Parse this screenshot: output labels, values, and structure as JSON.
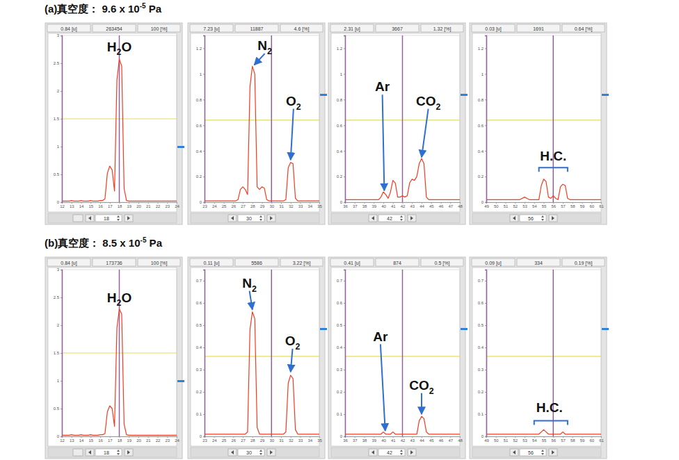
{
  "row_titles": [
    [
      "(a)真空度： 9.6 x 10",
      "-5",
      " Pa"
    ],
    [
      "(b)真空度： 8.5 x 10",
      "-5",
      " Pa"
    ]
  ],
  "chart_data": [
    {
      "type": "line",
      "color": "#f03c20",
      "grid": false,
      "header": [
        "0.84 [u]",
        "263454",
        "100 [%]"
      ],
      "cursor": 18,
      "threshold": 1.5,
      "xlim": [
        12,
        24
      ],
      "xticks": [
        12,
        13,
        14,
        15,
        16,
        17,
        18,
        19,
        20,
        21,
        22,
        23,
        24
      ],
      "ylim": [
        0,
        3
      ],
      "yticks": [
        0,
        0.5,
        1,
        1.5,
        2,
        2.5,
        3
      ],
      "x": [
        12,
        12.25,
        12.5,
        12.75,
        13,
        13.25,
        13.5,
        13.75,
        14,
        14.25,
        14.5,
        14.75,
        15,
        15.25,
        15.5,
        15.75,
        16,
        16.25,
        16.5,
        16.75,
        17,
        17.25,
        17.5,
        17.75,
        18,
        18.25,
        18.5,
        18.75,
        19,
        19.25,
        19.5,
        19.75,
        20,
        20.25,
        20.5,
        20.75,
        21,
        21.25,
        21.5,
        21.75,
        22,
        22.25,
        22.5,
        22.75,
        23,
        23.25,
        23.5,
        23.75,
        24
      ],
      "values": [
        0.02,
        0.02,
        0.02,
        0.02,
        0.03,
        0.02,
        0.02,
        0.02,
        0.03,
        0.02,
        0.02,
        0.02,
        0.03,
        0.02,
        0.02,
        0.02,
        0.03,
        0.03,
        0.06,
        0.52,
        0.65,
        0.58,
        0.2,
        2.2,
        2.57,
        2.45,
        0.25,
        0.03,
        0.02,
        0.02,
        0.02,
        0.02,
        0.02,
        0.02,
        0.02,
        0.02,
        0.02,
        0.02,
        0.02,
        0.02,
        0.02,
        0.02,
        0.02,
        0.02,
        0.02,
        0.02,
        0.02,
        0.02,
        0.02
      ],
      "annotations": [
        {
          "text": "H2O",
          "text_x": 18,
          "text_y": 2.8
        }
      ]
    },
    {
      "type": "line",
      "color": "#f03c20",
      "grid": false,
      "header": [
        "7.23 [u]",
        "11887",
        "4.6 [%]"
      ],
      "cursor": 30,
      "threshold": 0.64,
      "xlim": [
        23,
        35
      ],
      "xticks": [
        23,
        24,
        25,
        26,
        27,
        28,
        29,
        30,
        31,
        32,
        33,
        34,
        35
      ],
      "ylim": [
        0,
        1.3
      ],
      "yticks": [
        0,
        0.2,
        0.4,
        0.6,
        0.8,
        1,
        1.2
      ],
      "x": [
        23,
        23.25,
        23.5,
        23.75,
        24,
        24.25,
        24.5,
        24.75,
        25,
        25.25,
        25.5,
        25.75,
        26,
        26.25,
        26.5,
        26.75,
        27,
        27.25,
        27.5,
        27.75,
        28,
        28.25,
        28.5,
        28.75,
        29,
        29.25,
        29.5,
        29.75,
        30,
        30.25,
        30.5,
        30.75,
        31,
        31.25,
        31.5,
        31.75,
        32,
        32.25,
        32.5,
        32.75,
        33,
        33.25,
        33.5,
        33.75,
        34,
        34.25,
        34.5,
        34.75,
        35
      ],
      "values": [
        0.01,
        0.01,
        0.01,
        0.01,
        0.01,
        0.01,
        0.01,
        0.01,
        0.01,
        0.01,
        0.01,
        0.01,
        0.01,
        0.01,
        0.02,
        0.1,
        0.12,
        0.1,
        0.06,
        0.9,
        1.06,
        1.0,
        0.12,
        0.1,
        0.12,
        0.11,
        0.02,
        0.01,
        0.01,
        0.01,
        0.01,
        0.01,
        0.01,
        0.01,
        0.02,
        0.27,
        0.31,
        0.3,
        0.03,
        0.01,
        0.01,
        0.01,
        0.01,
        0.01,
        0.01,
        0.01,
        0.01,
        0.01,
        0.01
      ],
      "annotations": [
        {
          "text": "N2",
          "text_x": 29.3,
          "text_y": 1.22,
          "x": 28.2,
          "y": 1.07
        },
        {
          "text": "O2",
          "text_x": 32.3,
          "text_y": 0.79,
          "x": 32,
          "y": 0.33
        }
      ]
    },
    {
      "type": "line",
      "color": "#f03c20",
      "grid": false,
      "header": [
        "2.31 [u]",
        "3667",
        "1.32 [%]"
      ],
      "cursor": 42,
      "threshold": 0.64,
      "xlim": [
        36,
        48
      ],
      "xticks": [
        36,
        37,
        38,
        39,
        40,
        41,
        42,
        43,
        44,
        45,
        46,
        47,
        48
      ],
      "ylim": [
        0,
        1.3
      ],
      "yticks": [
        0,
        0.2,
        0.4,
        0.6,
        0.8,
        1,
        1.2
      ],
      "x": [
        36,
        36.25,
        36.5,
        36.75,
        37,
        37.25,
        37.5,
        37.75,
        38,
        38.25,
        38.5,
        38.75,
        39,
        39.25,
        39.5,
        39.75,
        40,
        40.25,
        40.5,
        40.75,
        41,
        41.25,
        41.5,
        41.75,
        42,
        42.25,
        42.5,
        42.75,
        43,
        43.25,
        43.5,
        43.75,
        44,
        44.25,
        44.5,
        44.75,
        45,
        45.25,
        45.5,
        45.75,
        46,
        46.25,
        46.5,
        46.75,
        47,
        47.25,
        47.5,
        47.75,
        48
      ],
      "values": [
        0.02,
        0.02,
        0.02,
        0.02,
        0.02,
        0.02,
        0.02,
        0.02,
        0.02,
        0.02,
        0.02,
        0.02,
        0.02,
        0.02,
        0.02,
        0.04,
        0.08,
        0.06,
        0.03,
        0.08,
        0.17,
        0.15,
        0.04,
        0.04,
        0.05,
        0.04,
        0.05,
        0.15,
        0.18,
        0.17,
        0.2,
        0.3,
        0.34,
        0.3,
        0.04,
        0.02,
        0.02,
        0.02,
        0.02,
        0.02,
        0.02,
        0.02,
        0.02,
        0.02,
        0.02,
        0.02,
        0.02,
        0.02,
        0.02
      ],
      "annotations": [
        {
          "text": "Ar",
          "text_x": 39.9,
          "text_y": 0.9,
          "x": 40.1,
          "y": 0.09
        },
        {
          "text": "CO2",
          "text_x": 44.7,
          "text_y": 0.79,
          "x": 44,
          "y": 0.35
        }
      ]
    },
    {
      "type": "line",
      "color": "#f03c20",
      "grid": false,
      "header": [
        "0.03 [u]",
        "1691",
        "0.64 [%]"
      ],
      "cursor": 56,
      "threshold": 0.64,
      "xlim": [
        49,
        61
      ],
      "xticks": [
        49,
        50,
        51,
        52,
        53,
        54,
        55,
        56,
        57,
        58,
        59,
        60,
        61
      ],
      "ylim": [
        0,
        1.3
      ],
      "yticks": [
        0,
        0.2,
        0.4,
        0.6,
        0.8,
        1,
        1.2
      ],
      "x": [
        49,
        49.25,
        49.5,
        49.75,
        50,
        50.25,
        50.5,
        50.75,
        51,
        51.25,
        51.5,
        51.75,
        52,
        52.25,
        52.5,
        52.75,
        53,
        53.25,
        53.5,
        53.75,
        54,
        54.25,
        54.5,
        54.75,
        55,
        55.25,
        55.5,
        55.75,
        56,
        56.25,
        56.5,
        56.75,
        57,
        57.25,
        57.5,
        57.75,
        58,
        58.25,
        58.5,
        58.75,
        59,
        59.25,
        59.5,
        59.75,
        60,
        60.25,
        60.5,
        60.75,
        61
      ],
      "values": [
        0.02,
        0.02,
        0.02,
        0.02,
        0.02,
        0.02,
        0.02,
        0.02,
        0.02,
        0.02,
        0.02,
        0.02,
        0.02,
        0.02,
        0.02,
        0.03,
        0.04,
        0.03,
        0.02,
        0.02,
        0.02,
        0.02,
        0.02,
        0.13,
        0.18,
        0.16,
        0.04,
        0.03,
        0.05,
        0.03,
        0.02,
        0.12,
        0.14,
        0.13,
        0.03,
        0.02,
        0.02,
        0.02,
        0.02,
        0.02,
        0.02,
        0.02,
        0.02,
        0.02,
        0.02,
        0.02,
        0.02,
        0.02,
        0.02
      ],
      "annotations": [
        {
          "text": "H.C.",
          "text_x": 56,
          "text_y": 0.36,
          "x": [
            54.5,
            57.5
          ],
          "y": 0.27
        }
      ]
    },
    {
      "type": "line",
      "color": "#f03c20",
      "grid": false,
      "header": [
        "0.84 [u]",
        "173736",
        "100 [%]"
      ],
      "cursor": 18,
      "threshold": 1.5,
      "xlim": [
        12,
        24
      ],
      "xticks": [
        12,
        13,
        14,
        15,
        16,
        17,
        18,
        19,
        20,
        21,
        22,
        23,
        24
      ],
      "ylim": [
        0,
        3
      ],
      "yticks": [
        0,
        0.5,
        1,
        1.5,
        2,
        2.5,
        3
      ],
      "x": [
        12,
        12.25,
        12.5,
        12.75,
        13,
        13.25,
        13.5,
        13.75,
        14,
        14.25,
        14.5,
        14.75,
        15,
        15.25,
        15.5,
        15.75,
        16,
        16.25,
        16.5,
        16.75,
        17,
        17.25,
        17.5,
        17.75,
        18,
        18.25,
        18.5,
        18.75,
        19,
        19.25,
        19.5,
        19.75,
        20,
        20.25,
        20.5,
        20.75,
        21,
        21.25,
        21.5,
        21.75,
        22,
        22.25,
        22.5,
        22.75,
        23,
        23.25,
        23.5,
        23.75,
        24
      ],
      "values": [
        0.02,
        0.02,
        0.02,
        0.02,
        0.03,
        0.02,
        0.02,
        0.02,
        0.03,
        0.02,
        0.02,
        0.02,
        0.03,
        0.02,
        0.02,
        0.02,
        0.03,
        0.03,
        0.05,
        0.44,
        0.55,
        0.5,
        0.18,
        1.95,
        2.29,
        2.2,
        0.22,
        0.03,
        0.02,
        0.02,
        0.02,
        0.02,
        0.02,
        0.02,
        0.02,
        0.02,
        0.02,
        0.02,
        0.02,
        0.02,
        0.02,
        0.02,
        0.02,
        0.02,
        0.02,
        0.02,
        0.02,
        0.02,
        0.02
      ],
      "annotations": [
        {
          "text": "H2O",
          "text_x": 18,
          "text_y": 2.5
        }
      ]
    },
    {
      "type": "line",
      "color": "#f03c20",
      "grid": false,
      "header": [
        "0.11 [u]",
        "5586",
        "3.22 [%]"
      ],
      "cursor": 30,
      "threshold": 0.36,
      "xlim": [
        23,
        35
      ],
      "xticks": [
        23,
        24,
        25,
        26,
        27,
        28,
        29,
        30,
        31,
        32,
        33,
        34,
        35
      ],
      "ylim": [
        0,
        0.75
      ],
      "yticks": [
        0,
        0.1,
        0.2,
        0.3,
        0.4,
        0.5,
        0.6,
        0.7
      ],
      "x": [
        23,
        23.25,
        23.5,
        23.75,
        24,
        24.25,
        24.5,
        24.75,
        25,
        25.25,
        25.5,
        25.75,
        26,
        26.25,
        26.5,
        26.75,
        27,
        27.25,
        27.5,
        27.75,
        28,
        28.25,
        28.5,
        28.75,
        29,
        29.25,
        29.5,
        29.75,
        30,
        30.25,
        30.5,
        30.75,
        31,
        31.25,
        31.5,
        31.75,
        32,
        32.25,
        32.5,
        32.75,
        33,
        33.25,
        33.5,
        33.75,
        34,
        34.25,
        34.5,
        34.75,
        35
      ],
      "values": [
        0.01,
        0.01,
        0.01,
        0.01,
        0.01,
        0.01,
        0.01,
        0.01,
        0.01,
        0.01,
        0.01,
        0.01,
        0.01,
        0.01,
        0.01,
        0.01,
        0.01,
        0.01,
        0.02,
        0.48,
        0.56,
        0.53,
        0.04,
        0.01,
        0.01,
        0.01,
        0.01,
        0.01,
        0.01,
        0.01,
        0.01,
        0.01,
        0.01,
        0.01,
        0.02,
        0.24,
        0.275,
        0.26,
        0.03,
        0.01,
        0.01,
        0.01,
        0.01,
        0.01,
        0.01,
        0.01,
        0.01,
        0.01,
        0.01
      ],
      "annotations": [
        {
          "text": "N2",
          "text_x": 27.7,
          "text_y": 0.69,
          "x": 28,
          "y": 0.57
        },
        {
          "text": "O2",
          "text_x": 32.2,
          "text_y": 0.43,
          "x": 32,
          "y": 0.29
        }
      ]
    },
    {
      "type": "line",
      "color": "#f03c20",
      "grid": false,
      "header": [
        "0.41 [u]",
        "874",
        "0.5 [%]"
      ],
      "cursor": 42,
      "threshold": 0.36,
      "xlim": [
        36,
        48
      ],
      "xticks": [
        36,
        37,
        38,
        39,
        40,
        41,
        42,
        43,
        44,
        45,
        46,
        47,
        48
      ],
      "ylim": [
        0,
        0.75
      ],
      "yticks": [
        0,
        0.1,
        0.2,
        0.3,
        0.4,
        0.5,
        0.6,
        0.7
      ],
      "x": [
        36,
        36.25,
        36.5,
        36.75,
        37,
        37.25,
        37.5,
        37.75,
        38,
        38.25,
        38.5,
        38.75,
        39,
        39.25,
        39.5,
        39.75,
        40,
        40.25,
        40.5,
        40.75,
        41,
        41.25,
        41.5,
        41.75,
        42,
        42.25,
        42.5,
        42.75,
        43,
        43.25,
        43.5,
        43.75,
        44,
        44.25,
        44.5,
        44.75,
        45,
        45.25,
        45.5,
        45.75,
        46,
        46.25,
        46.5,
        46.75,
        47,
        47.25,
        47.5,
        47.75,
        48
      ],
      "values": [
        0.01,
        0.01,
        0.01,
        0.01,
        0.01,
        0.01,
        0.01,
        0.01,
        0.01,
        0.01,
        0.01,
        0.01,
        0.01,
        0.01,
        0.01,
        0.01,
        0.02,
        0.01,
        0.01,
        0.01,
        0.02,
        0.01,
        0.01,
        0.01,
        0.01,
        0.01,
        0.01,
        0.01,
        0.01,
        0.01,
        0.01,
        0.07,
        0.09,
        0.08,
        0.02,
        0.01,
        0.01,
        0.01,
        0.01,
        0.01,
        0.01,
        0.01,
        0.01,
        0.01,
        0.01,
        0.01,
        0.01,
        0.01,
        0.01
      ],
      "annotations": [
        {
          "text": "Ar",
          "text_x": 39.7,
          "text_y": 0.45,
          "x": 40.2,
          "y": 0.025
        },
        {
          "text": "CO2",
          "text_x": 44,
          "text_y": 0.23,
          "x": 44,
          "y": 0.1
        }
      ]
    },
    {
      "type": "line",
      "color": "#f03c20",
      "grid": false,
      "header": [
        "0.09 [u]",
        "334",
        "0.19 [%]"
      ],
      "cursor": 56,
      "threshold": 0.36,
      "xlim": [
        49,
        61
      ],
      "xticks": [
        49,
        50,
        51,
        52,
        53,
        54,
        55,
        56,
        57,
        58,
        59,
        60,
        61
      ],
      "ylim": [
        0,
        0.75
      ],
      "yticks": [
        0,
        0.1,
        0.2,
        0.3,
        0.4,
        0.5,
        0.6,
        0.7
      ],
      "x": [
        49,
        49.25,
        49.5,
        49.75,
        50,
        50.25,
        50.5,
        50.75,
        51,
        51.25,
        51.5,
        51.75,
        52,
        52.25,
        52.5,
        52.75,
        53,
        53.25,
        53.5,
        53.75,
        54,
        54.25,
        54.5,
        54.75,
        55,
        55.25,
        55.5,
        55.75,
        56,
        56.25,
        56.5,
        56.75,
        57,
        57.25,
        57.5,
        57.75,
        58,
        58.25,
        58.5,
        58.75,
        59,
        59.25,
        59.5,
        59.75,
        60,
        60.25,
        60.5,
        60.75,
        61
      ],
      "values": [
        0.01,
        0.01,
        0.01,
        0.01,
        0.01,
        0.01,
        0.01,
        0.01,
        0.01,
        0.01,
        0.01,
        0.01,
        0.01,
        0.01,
        0.01,
        0.01,
        0.01,
        0.01,
        0.01,
        0.01,
        0.01,
        0.01,
        0.01,
        0.02,
        0.03,
        0.02,
        0.01,
        0.01,
        0.01,
        0.01,
        0.01,
        0.01,
        0.02,
        0.01,
        0.01,
        0.01,
        0.01,
        0.01,
        0.01,
        0.01,
        0.01,
        0.01,
        0.01,
        0.01,
        0.01,
        0.01,
        0.01,
        0.01,
        0.01
      ],
      "annotations": [
        {
          "text": "H.C.",
          "text_x": 55.6,
          "text_y": 0.13,
          "x": [
            54,
            57.5
          ],
          "y": 0.07
        }
      ]
    }
  ]
}
